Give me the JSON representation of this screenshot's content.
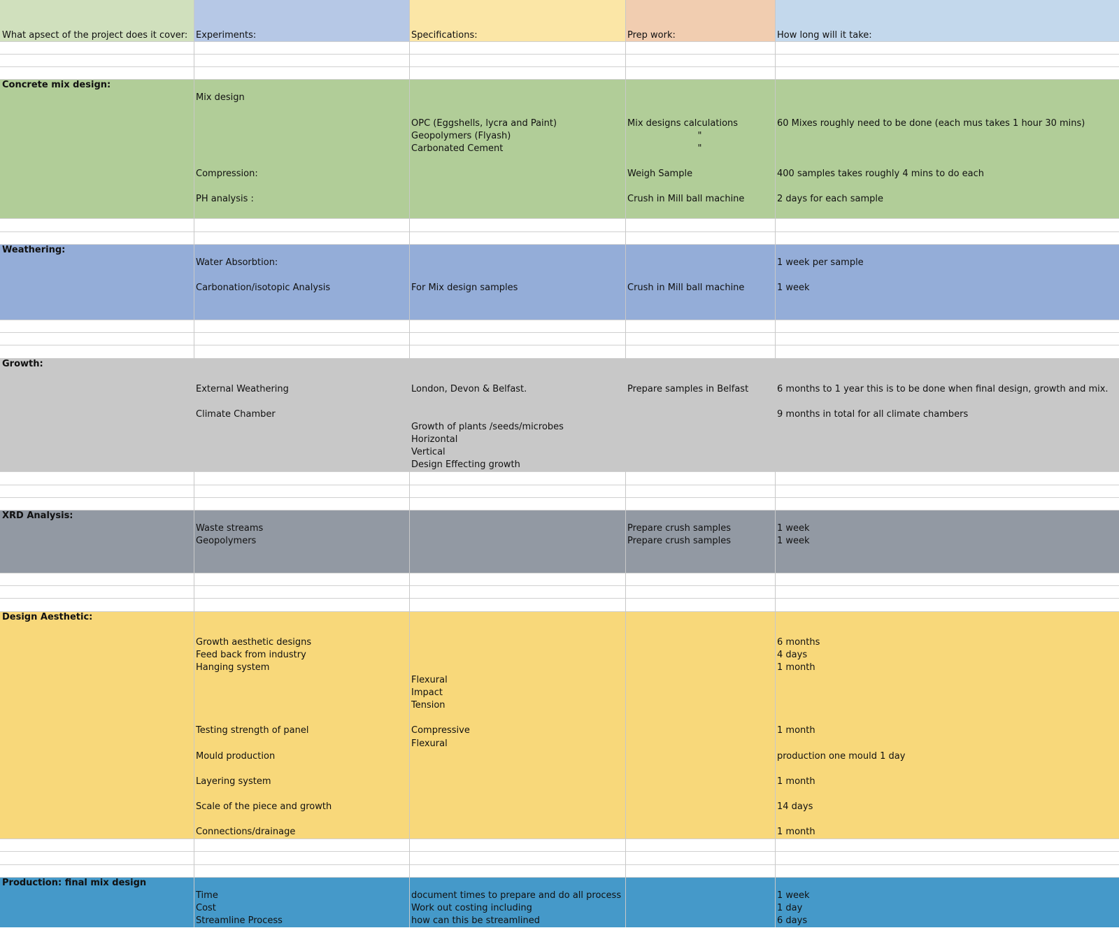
{
  "columns": [
    {
      "label": "What apsect of the project does it cover:",
      "color": "#d0e0bd"
    },
    {
      "label": "Experiments:",
      "color": "#b6c8e6"
    },
    {
      "label": "Specifications:",
      "color": "#fbe6a6"
    },
    {
      "label": "Prep work:",
      "color": "#f1cdb0"
    },
    {
      "label": "How long will it take:",
      "color": "#c3d8ec"
    }
  ],
  "sections": [
    {
      "color": "#b1cd98",
      "rows": [
        [
          "Concrete mix design:",
          "",
          "",
          "",
          ""
        ],
        [
          "",
          "Mix design",
          "",
          "",
          ""
        ],
        [
          "",
          "",
          "",
          "",
          ""
        ],
        [
          "",
          "",
          "OPC (Eggshells, lycra and Paint)",
          "Mix designs calculations",
          "60 Mixes roughly need to be done (each mus takes 1 hour 30 mins)"
        ],
        [
          "",
          "",
          "Geopolymers (Flyash)",
          "\"",
          ""
        ],
        [
          "",
          "",
          "Carbonated Cement",
          "\"",
          ""
        ],
        [
          "",
          "",
          "",
          "",
          ""
        ],
        [
          "",
          "Compression:",
          "",
          "Weigh Sample",
          "400 samples takes roughly 4 mins to do each"
        ],
        [
          "",
          "",
          "",
          "",
          ""
        ],
        [
          "",
          "PH analysis :",
          "",
          "Crush in Mill ball machine",
          "2 days for each sample"
        ],
        [
          "",
          "",
          "",
          "",
          ""
        ]
      ]
    },
    {
      "color": "#94add8",
      "rows": [
        [
          "Weathering:",
          "",
          "",
          "",
          ""
        ],
        [
          "",
          "Water Absorbtion:",
          "",
          "",
          "1 week per sample"
        ],
        [
          "",
          "",
          "",
          "",
          ""
        ],
        [
          "",
          "Carbonation/isotopic Analysis",
          "For Mix design samples",
          "Crush in Mill ball machine",
          "1 week"
        ],
        [
          "",
          "",
          "",
          "",
          ""
        ],
        [
          "",
          "",
          "",
          "",
          ""
        ]
      ]
    },
    {
      "color": "#c8c8c8",
      "rows": [
        [
          "Growth:",
          "",
          "",
          "",
          ""
        ],
        [
          "",
          "",
          "",
          "",
          ""
        ],
        [
          "",
          "External Weathering",
          "London, Devon & Belfast.",
          "Prepare samples in Belfast",
          "6 months to 1 year  this is to be done when final design, growth and mix."
        ],
        [
          "",
          "",
          "",
          "",
          ""
        ],
        [
          "",
          "Climate Chamber",
          "",
          "",
          "9 months  in total for all climate chambers"
        ],
        [
          "",
          "",
          "Growth of plants /seeds/microbes",
          "",
          ""
        ],
        [
          "",
          "",
          "Horizontal",
          "",
          ""
        ],
        [
          "",
          "",
          "Vertical",
          "",
          ""
        ],
        [
          "",
          "",
          "Design Effecting growth",
          "",
          ""
        ]
      ]
    },
    {
      "color": "#9299a3",
      "rows": [
        [
          "XRD Analysis:",
          "",
          "",
          "",
          ""
        ],
        [
          "",
          "Waste streams",
          "",
          "Prepare crush samples",
          "1 week"
        ],
        [
          "",
          "Geopolymers",
          "",
          "Prepare crush samples",
          "1 week"
        ],
        [
          "",
          "",
          "",
          "",
          ""
        ],
        [
          "",
          "",
          "",
          "",
          ""
        ]
      ]
    },
    {
      "color": "#f8d87a",
      "rows": [
        [
          "Design Aesthetic:",
          "",
          "",
          "",
          ""
        ],
        [
          "",
          "",
          "",
          "",
          ""
        ],
        [
          "",
          "Growth aesthetic designs",
          "",
          "",
          "6 months"
        ],
        [
          "",
          "Feed back from industry",
          "",
          "",
          "4 days"
        ],
        [
          "",
          "Hanging system",
          "",
          "",
          "1 month"
        ],
        [
          "",
          "",
          "Flexural",
          "",
          ""
        ],
        [
          "",
          "",
          "Impact",
          "",
          ""
        ],
        [
          "",
          "",
          "Tension",
          "",
          ""
        ],
        [
          "",
          "",
          "",
          "",
          ""
        ],
        [
          "",
          "Testing strength of panel",
          "Compressive",
          "",
          "1 month"
        ],
        [
          "",
          "",
          "Flexural",
          "",
          ""
        ],
        [
          "",
          "Mould production",
          "",
          "",
          "production one mould 1 day"
        ],
        [
          "",
          "",
          "",
          "",
          ""
        ],
        [
          "",
          "Layering system",
          "",
          "",
          "1 month"
        ],
        [
          "",
          "",
          "",
          "",
          ""
        ],
        [
          "",
          "Scale of the piece and growth",
          "",
          "",
          "14 days"
        ],
        [
          "",
          "",
          "",
          "",
          ""
        ],
        [
          "",
          "Connections/drainage",
          "",
          "",
          "1 month"
        ]
      ]
    },
    {
      "color": "#4599c9",
      "rows": [
        [
          "Production: final mix design",
          "",
          "",
          "",
          ""
        ],
        [
          "",
          "Time",
          "document times to prepare and do all process",
          "",
          "1 week"
        ],
        [
          "",
          "Cost",
          "Work out costing including",
          "",
          "1 day"
        ],
        [
          "",
          "Streamline Process",
          "how can this be streamlined",
          "",
          "6 days"
        ]
      ]
    }
  ],
  "gaps": [
    3,
    2,
    3,
    3,
    3,
    3
  ]
}
